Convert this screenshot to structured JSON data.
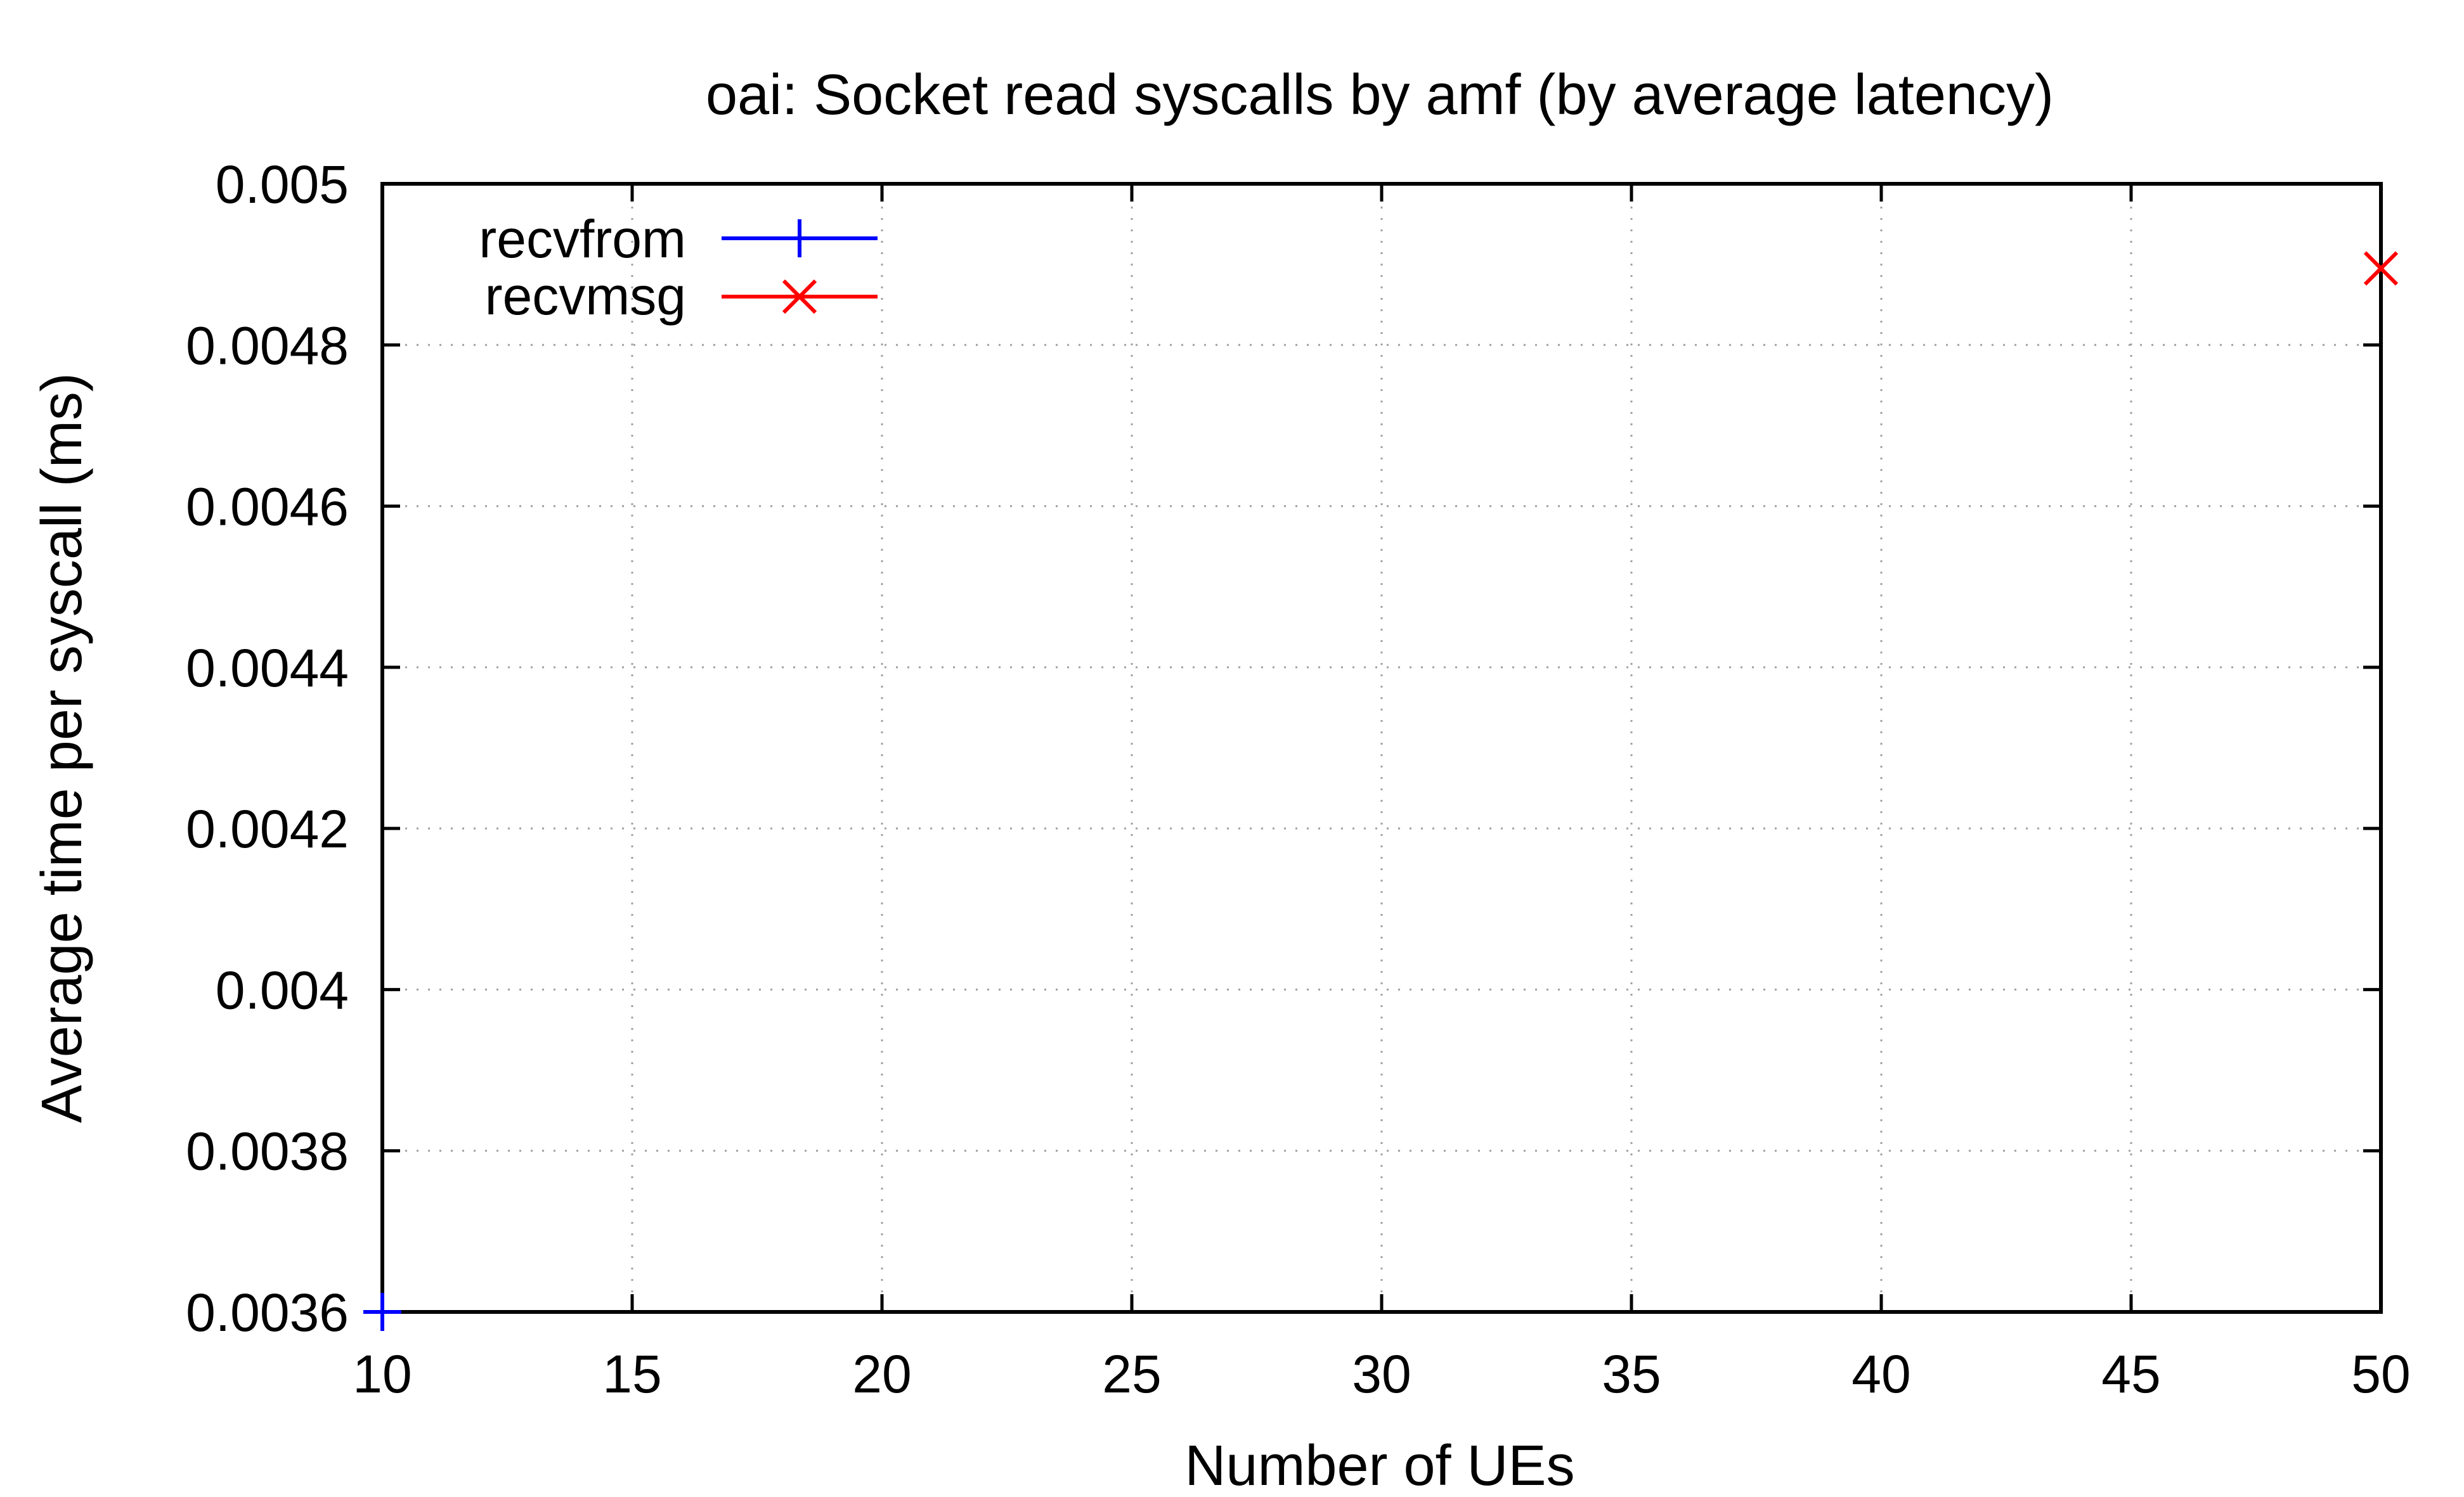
{
  "chart_data": {
    "type": "line",
    "title": "oai: Socket read syscalls by amf (by average latency)",
    "xlabel": "Number of UEs",
    "ylabel": "Average time per syscall (ms)",
    "xlim": [
      10,
      50
    ],
    "ylim": [
      0.0036,
      0.005
    ],
    "xticks": [
      10,
      15,
      20,
      25,
      30,
      35,
      40,
      45,
      50
    ],
    "xtick_labels": [
      "10",
      "15",
      "20",
      "25",
      "30",
      "35",
      "40",
      "45",
      "50"
    ],
    "yticks": [
      0.0036,
      0.0038,
      0.004,
      0.0042,
      0.0044,
      0.0046,
      0.0048,
      0.005
    ],
    "ytick_labels": [
      "0.0036",
      "0.0038",
      "0.004",
      "0.0042",
      "0.0044",
      "0.0046",
      "0.0048",
      "0.005"
    ],
    "grid": true,
    "legend_position": "top-left",
    "series": [
      {
        "name": "recvfrom",
        "color": "#0000ff",
        "marker": "plus",
        "points": [
          {
            "x": 10,
            "y": 0.0036
          }
        ]
      },
      {
        "name": "recvmsg",
        "color": "#ff0000",
        "marker": "cross",
        "points": [
          {
            "x": 50,
            "y": 0.004895
          }
        ]
      }
    ]
  }
}
